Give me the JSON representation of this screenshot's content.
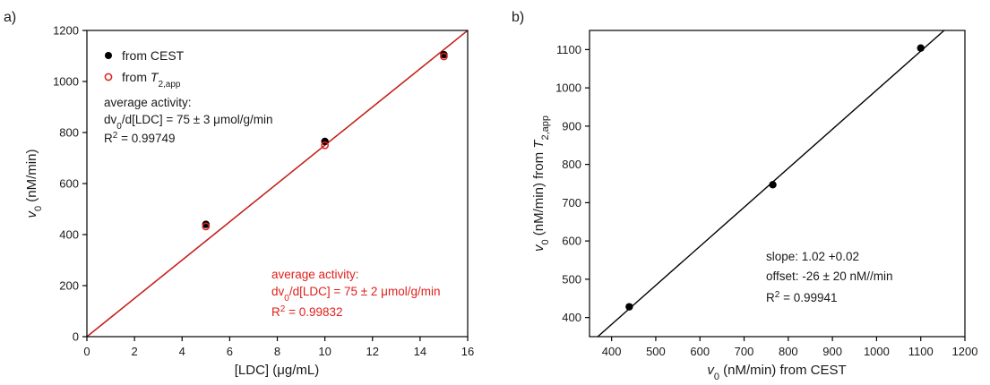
{
  "chart_data": [
    {
      "panel_label": "a)",
      "type": "scatter",
      "xlabel": "[LDC] (μg/mL)",
      "ylabel_parts": [
        "v",
        "0",
        " (nM/min)"
      ],
      "xlim": [
        0,
        16
      ],
      "ylim": [
        0,
        1200
      ],
      "xticks": [
        0,
        2,
        4,
        6,
        8,
        10,
        12,
        14,
        16
      ],
      "yticks": [
        0,
        200,
        400,
        600,
        800,
        1000,
        1200
      ],
      "legend_position": "top-left",
      "series": [
        {
          "legend_parts": [
            "from CEST"
          ],
          "marker": "filled-circle",
          "color": "#000000",
          "x": [
            5,
            10,
            15
          ],
          "y": [
            440,
            765,
            1105
          ],
          "fit": {
            "slope": 75,
            "intercept": 0,
            "color": "#000000"
          }
        },
        {
          "legend_parts": [
            "from ",
            "T",
            "2,app"
          ],
          "marker": "open-circle",
          "color": "#e0201b",
          "x": [
            5,
            10,
            15
          ],
          "y": [
            432,
            750,
            1098
          ],
          "fit": {
            "slope": 75,
            "intercept": 0,
            "color": "#d81f1a"
          }
        }
      ],
      "annotations": {
        "black": {
          "line1": "average activity:",
          "line2_parts": [
            "dv",
            "0",
            "/d[LDC] = 75 ± 3 μmol/g/min"
          ],
          "line3_parts": [
            "R",
            "2",
            " = 0.99749"
          ]
        },
        "red": {
          "line1": "average activity:",
          "line2_parts": [
            "dv",
            "0",
            "/d[LDC] = 75 ± 2 μmol/g/min"
          ],
          "line3_parts": [
            "R",
            "2",
            " = 0.99832"
          ]
        }
      }
    },
    {
      "panel_label": "b)",
      "type": "scatter",
      "xlabel_parts": [
        "v",
        "0",
        " (nM/min) from CEST"
      ],
      "ylabel_parts": [
        "v",
        "0",
        " (nM/min) from ",
        "T",
        "2,app"
      ],
      "xlim": [
        350,
        1200
      ],
      "ylim": [
        350,
        1150
      ],
      "xticks": [
        400,
        500,
        600,
        700,
        800,
        900,
        1000,
        1100,
        1200
      ],
      "yticks": [
        400,
        500,
        600,
        700,
        800,
        900,
        1000,
        1100
      ],
      "series": [
        {
          "marker": "filled-circle",
          "color": "#000000",
          "x": [
            440,
            765,
            1100
          ],
          "y": [
            428,
            747,
            1104
          ],
          "fit": {
            "slope": 1.02,
            "intercept": -26,
            "color": "#000000"
          }
        }
      ],
      "annotations": {
        "line1": "slope: 1.02 +0.02",
        "line2": "offset: -26 ± 20 nM//min",
        "line3_parts": [
          "R",
          "2",
          " = 0.99941"
        ]
      }
    }
  ]
}
